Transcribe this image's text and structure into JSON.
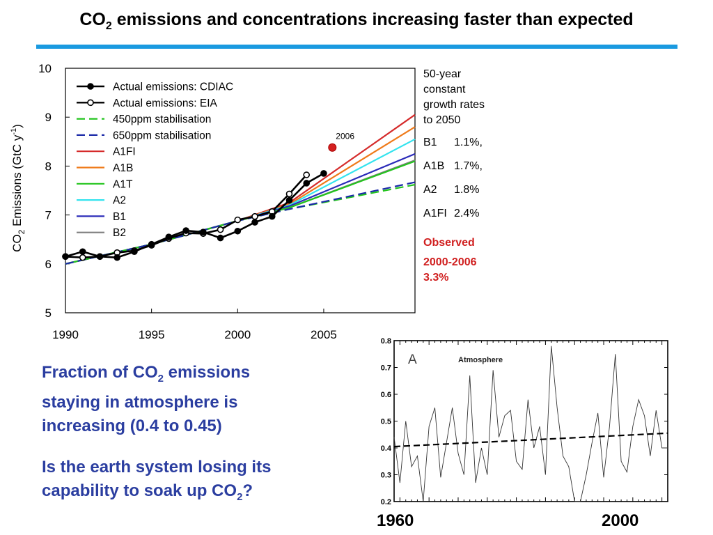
{
  "slide": {
    "title_prefix": "CO",
    "title_sub": "2",
    "title_rest": " emissions and concentrations increasing faster than expected",
    "growth_heading": "50-year\nconstant\ngrowth rates\nto 2050",
    "growth_rates": [
      {
        "scenario": "B1",
        "rate": "1.1%,"
      },
      {
        "scenario": "A1B",
        "rate": "1.7%,"
      },
      {
        "scenario": "A2",
        "rate": "1.8%"
      },
      {
        "scenario": "A1FI",
        "rate": "2.4%"
      }
    ],
    "observed_label": "Observed",
    "observed_period": "2000-2006",
    "observed_rate": "3.3%",
    "caption1": {
      "pre": "Fraction of CO",
      "sub": "2",
      "post": " emissions",
      "line2": "staying in atmosphere is",
      "line3": "increasing (0.4 to 0.45)"
    },
    "caption2": {
      "line1": "Is the earth system losing its",
      "pre": "capability to soak up CO",
      "sub": "2",
      "post": "?"
    },
    "year_start": "1960",
    "year_end": "2000",
    "accent_color": "#1a9ae0",
    "caption_color": "#2b3ea0",
    "observed_color": "#d01f1f"
  },
  "chart_data": [
    {
      "type": "line",
      "ylabel_pre": "CO",
      "ylabel_sub": "2",
      "ylabel_post": " Emissions (GtC y",
      "ylabel_sup": "-1",
      "ylabel_end": ")",
      "xlim": [
        1990,
        2010.3
      ],
      "ylim": [
        5,
        10
      ],
      "xticks": [
        1990,
        1995,
        2000,
        2005
      ],
      "yticks": [
        5,
        6,
        7,
        8,
        9,
        10
      ],
      "legend_position": "top-left",
      "annotation": {
        "label": "2006",
        "x": 2005.5,
        "y": 8.38,
        "color": "#d42020"
      },
      "series": [
        {
          "name": "Actual emissions: CDIAC",
          "style": "filled-markers",
          "color": "#000000",
          "x": [
            1990,
            1991,
            1992,
            1993,
            1994,
            1995,
            1996,
            1997,
            1998,
            1999,
            2000,
            2001,
            2002,
            2003,
            2004,
            2005
          ],
          "y": [
            6.15,
            6.25,
            6.15,
            6.13,
            6.25,
            6.4,
            6.55,
            6.68,
            6.65,
            6.53,
            6.67,
            6.85,
            6.97,
            7.3,
            7.65,
            7.85
          ]
        },
        {
          "name": "Actual emissions: EIA",
          "style": "open-markers",
          "color": "#000000",
          "x": [
            1990,
            1991,
            1992,
            1993,
            1994,
            1995,
            1996,
            1997,
            1998,
            1999,
            2000,
            2001,
            2002,
            2003,
            2004
          ],
          "y": [
            6.15,
            6.13,
            6.15,
            6.23,
            6.27,
            6.38,
            6.52,
            6.63,
            6.62,
            6.7,
            6.9,
            6.97,
            7.07,
            7.43,
            7.82
          ]
        },
        {
          "name": "450ppm stabilisation",
          "style": "dashed",
          "color": "#22c41c",
          "x": [
            1990,
            1995,
            2000,
            2003,
            2010.3
          ],
          "y": [
            6.0,
            6.4,
            6.88,
            7.12,
            7.62
          ]
        },
        {
          "name": "650ppm stabilisation",
          "style": "dashed",
          "color": "#1c2aa8",
          "x": [
            1990,
            1995,
            2000,
            2003,
            2010.3
          ],
          "y": [
            6.0,
            6.4,
            6.88,
            7.12,
            7.67
          ]
        },
        {
          "name": "A1FI",
          "style": "solid",
          "color": "#d52a2a",
          "x": [
            1990,
            1995,
            2000,
            2003,
            2010.3
          ],
          "y": [
            6.0,
            6.4,
            6.88,
            7.25,
            9.05
          ]
        },
        {
          "name": "A1B",
          "style": "solid",
          "color": "#ef7a1a",
          "x": [
            1990,
            1995,
            2000,
            2003,
            2010.3
          ],
          "y": [
            6.0,
            6.4,
            6.88,
            7.22,
            8.8
          ]
        },
        {
          "name": "A1T",
          "style": "solid",
          "color": "#22c41c",
          "x": [
            1990,
            1995,
            2000,
            2003,
            2010.3
          ],
          "y": [
            6.0,
            6.4,
            6.88,
            7.15,
            8.1
          ]
        },
        {
          "name": "A2",
          "style": "solid",
          "color": "#33e3ee",
          "x": [
            1990,
            1995,
            2000,
            2003,
            2010.3
          ],
          "y": [
            6.0,
            6.4,
            6.88,
            7.2,
            8.55
          ]
        },
        {
          "name": "B1",
          "style": "solid",
          "color": "#2a2ab8",
          "x": [
            1990,
            1995,
            2000,
            2003,
            2010.3
          ],
          "y": [
            6.0,
            6.4,
            6.88,
            7.18,
            8.25
          ]
        },
        {
          "name": "B2",
          "style": "solid",
          "color": "#7f7f7f",
          "x": [
            1990,
            1995,
            2000,
            2003,
            2010.3
          ],
          "y": [
            6.0,
            6.4,
            6.88,
            7.15,
            8.12
          ]
        }
      ]
    },
    {
      "type": "line",
      "panel_label": "A",
      "title": "Atmosphere",
      "xlim": [
        1959,
        2006
      ],
      "ylim": [
        0.2,
        0.8
      ],
      "yticks": [
        0.2,
        0.3,
        0.4,
        0.5,
        0.6,
        0.7,
        0.8
      ],
      "series": [
        {
          "name": "",
          "style": "solid-thin",
          "color": "#333333",
          "x": [
            1959,
            1960,
            1961,
            1962,
            1963,
            1964,
            1965,
            1966,
            1967,
            1968,
            1969,
            1970,
            1971,
            1972,
            1973,
            1974,
            1975,
            1976,
            1977,
            1978,
            1979,
            1980,
            1981,
            1982,
            1983,
            1984,
            1985,
            1986,
            1987,
            1988,
            1989,
            1990,
            1991,
            1992,
            1993,
            1994,
            1995,
            1996,
            1997,
            1998,
            1999,
            2000,
            2001,
            2002,
            2003,
            2004,
            2005,
            2006
          ],
          "y": [
            0.44,
            0.27,
            0.5,
            0.33,
            0.37,
            0.2,
            0.48,
            0.55,
            0.29,
            0.42,
            0.55,
            0.38,
            0.3,
            0.67,
            0.27,
            0.4,
            0.3,
            0.69,
            0.44,
            0.52,
            0.54,
            0.35,
            0.32,
            0.58,
            0.4,
            0.48,
            0.3,
            0.78,
            0.55,
            0.37,
            0.33,
            0.2,
            0.2,
            0.3,
            0.42,
            0.53,
            0.29,
            0.48,
            0.75,
            0.35,
            0.31,
            0.48,
            0.58,
            0.52,
            0.37,
            0.54,
            0.4,
            0.4
          ]
        },
        {
          "name": "",
          "style": "dashed-trend",
          "color": "#000000",
          "x": [
            1959,
            2006
          ],
          "y": [
            0.405,
            0.455
          ]
        }
      ]
    }
  ]
}
